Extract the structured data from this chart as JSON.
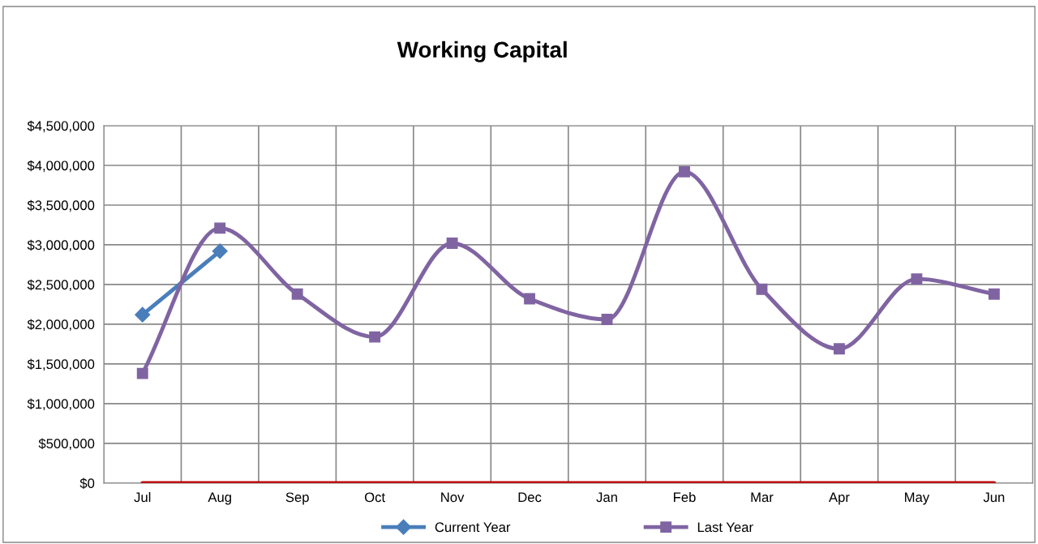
{
  "chart_data": {
    "type": "line",
    "title": "Working Capital",
    "categories": [
      "Jul",
      "Aug",
      "Sep",
      "Oct",
      "Nov",
      "Dec",
      "Jan",
      "Feb",
      "Mar",
      "Apr",
      "May",
      "Jun"
    ],
    "series": [
      {
        "name": "Current Year",
        "color": "#4a7ebb",
        "marker": "diamond",
        "values": [
          2120000,
          2920000,
          null,
          null,
          null,
          null,
          null,
          null,
          null,
          null,
          null,
          null
        ]
      },
      {
        "name": "Last Year",
        "color": "#8064a2",
        "marker": "square",
        "values": [
          1380000,
          3210000,
          2380000,
          1840000,
          3020000,
          2320000,
          2060000,
          3920000,
          2440000,
          1690000,
          2570000,
          2380000
        ]
      },
      {
        "color": "#c00000",
        "marker": "none",
        "values": [
          0,
          0,
          0,
          0,
          0,
          0,
          0,
          0,
          0,
          0,
          0,
          0
        ]
      }
    ],
    "ylim": [
      0,
      4500000
    ],
    "yticks": [
      {
        "value": 0,
        "label": "$0"
      },
      {
        "value": 500000,
        "label": "$500,000"
      },
      {
        "value": 1000000,
        "label": "$1,000,000"
      },
      {
        "value": 1500000,
        "label": "$1,500,000"
      },
      {
        "value": 2000000,
        "label": "$2,000,000"
      },
      {
        "value": 2500000,
        "label": "$2,500,000"
      },
      {
        "value": 3000000,
        "label": "$3,000,000"
      },
      {
        "value": 3500000,
        "label": "$3,500,000"
      },
      {
        "value": 4000000,
        "label": "$4,000,000"
      },
      {
        "value": 4500000,
        "label": "$4,500,000"
      }
    ],
    "grid": true,
    "legend": "bottom"
  }
}
